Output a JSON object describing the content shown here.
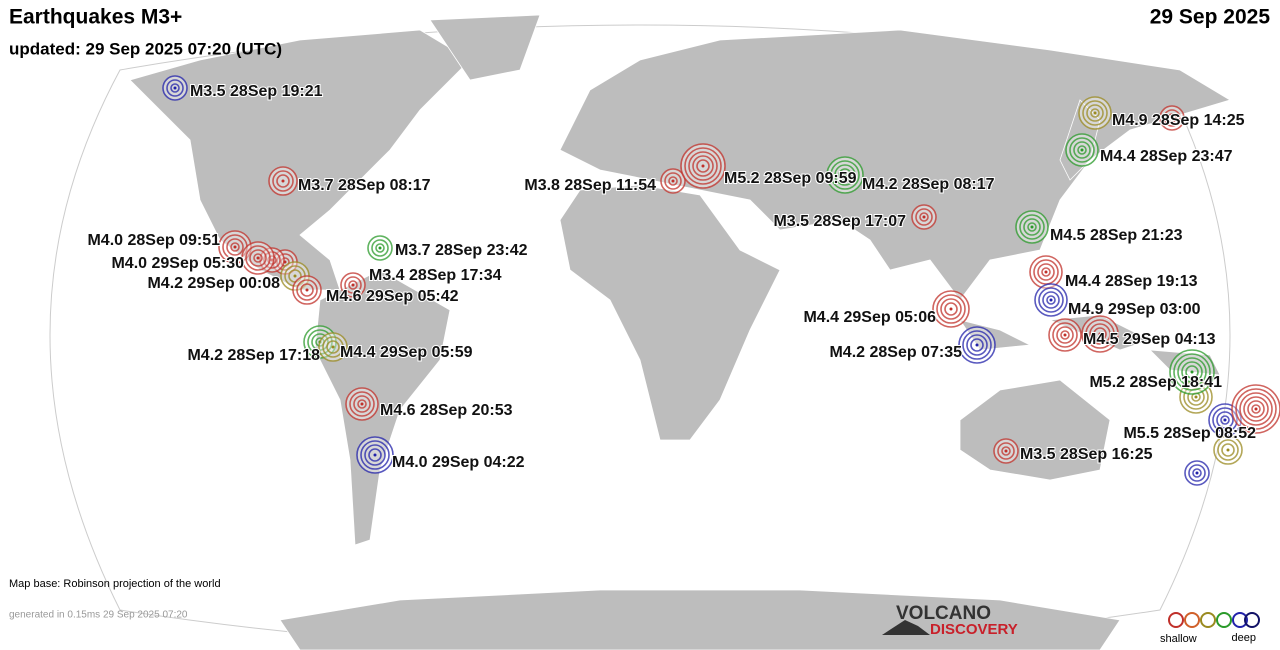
{
  "header": {
    "title": "Earthquakes M3+",
    "date": "29 Sep 2025",
    "updated": "updated: 29 Sep 2025 07:20 (UTC)"
  },
  "quakes": [
    {
      "label": "M3.5 28Sep 19:21",
      "color": "#2222aa"
    },
    {
      "label": "M3.7 28Sep 08:17",
      "color": "#c0302a"
    },
    {
      "label": "M4.0 28Sep 09:51",
      "color": "#c0302a"
    },
    {
      "label": "M4.0 29Sep 05:30",
      "color": "#c0302a"
    },
    {
      "label": "M4.2 29Sep 00:08",
      "color": "#9a8a20"
    },
    {
      "label": "M3.7 28Sep 23:42",
      "color": "#2a9a2a"
    },
    {
      "label": "M3.4 28Sep 17:34",
      "color": "#c0302a"
    },
    {
      "label": "M4.6 29Sep 05:42",
      "color": "#c0302a"
    },
    {
      "label": "M4.2 28Sep 17:18",
      "color": "#2a9a2a"
    },
    {
      "label": "M4.4 29Sep 05:59",
      "color": "#9a8a20"
    },
    {
      "label": "M4.6 28Sep 20:53",
      "color": "#c0302a"
    },
    {
      "label": "M4.0 29Sep 04:22",
      "color": "#2222aa"
    },
    {
      "label": "M3.8 28Sep 11:54",
      "color": "#c0302a"
    },
    {
      "label": "M5.2 28Sep 09:59",
      "color": "#c0302a"
    },
    {
      "label": "M4.2 28Sep 08:17",
      "color": "#2a9a2a"
    },
    {
      "label": "M3.5 28Sep 17:07",
      "color": "#c0302a"
    },
    {
      "label": "M4.9 28Sep 14:25",
      "color": "#9a8a20"
    },
    {
      "label": "M4.4 28Sep 23:47",
      "color": "#2a9a2a"
    },
    {
      "label": "M4.5 28Sep 21:23",
      "color": "#2a9a2a"
    },
    {
      "label": "M4.4 28Sep 19:13",
      "color": "#c0302a"
    },
    {
      "label": "M4.9 29Sep 03:00",
      "color": "#2222aa"
    },
    {
      "label": "M4.4 29Sep 05:06",
      "color": "#c0302a"
    },
    {
      "label": "M4.2 28Sep 07:35",
      "color": "#2222aa"
    },
    {
      "label": "M4.5 29Sep 04:13",
      "color": "#c0302a"
    },
    {
      "label": "M5.2 28Sep 18:41",
      "color": "#2a9a2a"
    },
    {
      "label": "M5.5 28Sep 08:52",
      "color": "#c0302a"
    },
    {
      "label": "M3.5 28Sep 16:25",
      "color": "#c0302a"
    }
  ],
  "footer": {
    "map_base": "Map base: Robinson projection of the world",
    "generated": "generated in 0.15ms 29 Sep 2025 07:20"
  },
  "logo": {
    "line1": "VOLCANO",
    "line2": "DISCOVERY"
  },
  "legend": {
    "shallow": "shallow",
    "deep": "deep"
  }
}
